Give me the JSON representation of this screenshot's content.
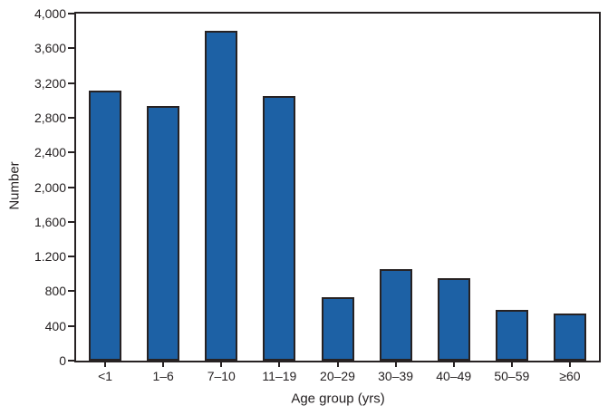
{
  "chart_data": {
    "type": "bar",
    "title": "",
    "xlabel": "Age group (yrs)",
    "ylabel": "Number",
    "categories": [
      "<1",
      "1–6",
      "7–10",
      "11–19",
      "20–29",
      "30–39",
      "40–49",
      "50–59",
      "≥60"
    ],
    "values": [
      3110,
      2930,
      3800,
      3050,
      730,
      1050,
      950,
      590,
      540
    ],
    "ylim": [
      0,
      4000
    ],
    "ytick_step": 400,
    "ytick_labels": [
      "0",
      "400",
      "800",
      "1.200",
      "1,600",
      "2,000",
      "2,400",
      "2,800",
      "3,200",
      "3,600",
      "4,000"
    ],
    "grid": false,
    "legend": null,
    "bar_color": "#1d61a5",
    "bar_border_color": "#272223",
    "frame_color": "#272223",
    "text_color": "#231f20"
  }
}
